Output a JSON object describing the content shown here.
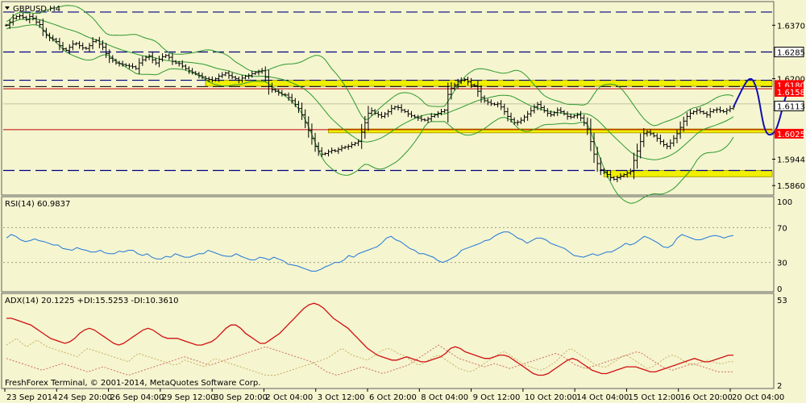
{
  "chart_data": {
    "type": "candlestick-with-indicators",
    "symbol_label": "GBPUSD,H4",
    "colors": {
      "background": "#f5f5d0",
      "candles": "#000000",
      "bollinger": "#2e9a2e",
      "rsi": "#1e78d8",
      "adx": "#d01010",
      "plus_di": "#c8b060",
      "minus_di": "#d07060",
      "support_zone": "#f0f000",
      "support_zone_border": "#b0a000",
      "red_line": "#c00000",
      "dashed_line": "#000080",
      "forecast_curve": "#1010b0",
      "price_label_bg": "#ff0000",
      "price_label_text": "#ffffff"
    },
    "price_axis": {
      "ticks": [
        "1.6370",
        "1.6285",
        "1.6200",
        "1.6180",
        "1.6158",
        "1.6113",
        "1.6025",
        "1.5944",
        "1.5860"
      ],
      "range": [
        1.5835,
        1.644
      ]
    },
    "x_axis_labels": [
      "23 Sep 2014",
      "24 Sep 20:00",
      "26 Sep 04:00",
      "29 Sep 12:00",
      "30 Sep 20:00",
      "2 Oct 04:00",
      "3 Oct 12:00",
      "6 Oct 20:00",
      "8 Oct 04:00",
      "9 Oct 12:00",
      "10 Oct 20:00",
      "14 Oct 04:00",
      "15 Oct 12:00",
      "16 Oct 20:00",
      "20 Oct 04:00"
    ],
    "highlighted_price_labels": [
      {
        "price": "1.6285",
        "style": "box"
      },
      {
        "price": "1.6180",
        "style": "red"
      },
      {
        "price": "1.6158",
        "style": "red"
      },
      {
        "price": "1.6113",
        "style": "box"
      },
      {
        "price": "1.6025",
        "style": "red"
      }
    ],
    "horizontal_levels": [
      {
        "price": 1.6412,
        "style": "dashed"
      },
      {
        "price": 1.6285,
        "style": "dashed"
      },
      {
        "price": 1.6195,
        "style": "dashed"
      },
      {
        "price": 1.6175,
        "style": "yellow-dashed"
      },
      {
        "price": 1.6168,
        "style": "red"
      },
      {
        "price": 1.612,
        "style": "solid-thin"
      },
      {
        "price": 1.6038,
        "style": "red"
      },
      {
        "price": 1.5908,
        "style": "dashed"
      }
    ],
    "support_zones": [
      {
        "from_bar": 60,
        "to_bar": 240,
        "top": 1.6195,
        "bottom": 1.6176
      },
      {
        "from_bar": 97,
        "to_bar": 240,
        "top": 1.604,
        "bottom": 1.6028
      },
      {
        "from_bar": 180,
        "to_bar": 240,
        "top": 1.5908,
        "bottom": 1.5888
      }
    ],
    "candles_close": [
      1.637,
      1.638,
      1.6392,
      1.6398,
      1.64,
      1.6395,
      1.6388,
      1.6398,
      1.6392,
      1.638,
      1.6372,
      1.6352,
      1.6338,
      1.633,
      1.6325,
      1.6318,
      1.6305,
      1.6295,
      1.629,
      1.63,
      1.631,
      1.6312,
      1.6305,
      1.6298,
      1.6296,
      1.6305,
      1.6318,
      1.6322,
      1.631,
      1.63,
      1.628,
      1.6265,
      1.6258,
      1.625,
      1.6248,
      1.6245,
      1.6242,
      1.624,
      1.6238,
      1.6232,
      1.625,
      1.626,
      1.6268,
      1.6272,
      1.626,
      1.625,
      1.6262,
      1.627,
      1.6274,
      1.6268,
      1.6255,
      1.625,
      1.6248,
      1.624,
      1.6232,
      1.6225,
      1.622,
      1.6215,
      1.621,
      1.6205,
      1.62,
      1.6198,
      1.6195,
      1.62,
      1.6208,
      1.6212,
      1.6218,
      1.621,
      1.6205,
      1.62,
      1.6195,
      1.6202,
      1.6208,
      1.621,
      1.6216,
      1.622,
      1.6222,
      1.6225,
      1.6205,
      1.6175,
      1.6165,
      1.616,
      1.6155,
      1.615,
      1.6148,
      1.614,
      1.613,
      1.6118,
      1.6105,
      1.6085,
      1.606,
      1.6035,
      1.601,
      1.5985,
      1.597,
      1.596,
      1.5962,
      1.5968,
      1.5972,
      1.597,
      1.5975,
      1.598,
      1.5983,
      1.5985,
      1.599,
      1.5995,
      1.6,
      1.603,
      1.606,
      1.609,
      1.6098,
      1.609,
      1.6085,
      1.608,
      1.6088,
      1.6095,
      1.6105,
      1.611,
      1.6108,
      1.61,
      1.6095,
      1.6088,
      1.6082,
      1.6078,
      1.6075,
      1.607,
      1.6068,
      1.6072,
      1.608,
      1.6085,
      1.609,
      1.6095,
      1.61,
      1.615,
      1.617,
      1.618,
      1.619,
      1.6195,
      1.6198,
      1.619,
      1.618,
      1.6178,
      1.616,
      1.614,
      1.613,
      1.6125,
      1.612,
      1.6118,
      1.612,
      1.611,
      1.6095,
      1.608,
      1.607,
      1.606,
      1.6062,
      1.6068,
      1.6078,
      1.6088,
      1.6098,
      1.611,
      1.6118,
      1.6108,
      1.6098,
      1.609,
      1.6085,
      1.6092,
      1.61,
      1.6095,
      1.6088,
      1.608,
      1.6078,
      1.6082,
      1.6085,
      1.6075,
      1.606,
      1.604,
      1.6,
      1.596,
      1.593,
      1.591,
      1.5902,
      1.5895,
      1.5885,
      1.588,
      1.5885,
      1.589,
      1.5895,
      1.59,
      1.5905,
      1.594,
      1.597,
      1.6,
      1.6025,
      1.603,
      1.6025,
      1.6018,
      1.601,
      1.6,
      1.599,
      1.5985,
      1.5995,
      1.601,
      1.6025,
      1.6045,
      1.6065,
      1.608,
      1.609,
      1.6095,
      1.61,
      1.6095,
      1.609,
      1.6085,
      1.6095,
      1.61,
      1.6102,
      1.6098,
      1.6095,
      1.61,
      1.6105,
      1.611
    ],
    "rsi": {
      "label": "RSI(14) 60.9837",
      "scale": [
        "100",
        "70",
        "30",
        "0"
      ],
      "range": [
        0,
        100
      ],
      "levels": [
        70,
        30
      ],
      "values": [
        58,
        62,
        60,
        56,
        54,
        55,
        57,
        55,
        54,
        52,
        50,
        50,
        46,
        45,
        44,
        47,
        45,
        44,
        42,
        42,
        44,
        41,
        40,
        40,
        43,
        42,
        44,
        44,
        40,
        38,
        40,
        36,
        34,
        34,
        37,
        36,
        40,
        38,
        36,
        36,
        38,
        40,
        40,
        44,
        42,
        40,
        38,
        37,
        37,
        40,
        37,
        35,
        33,
        33,
        36,
        35,
        33,
        36,
        34,
        32,
        28,
        27,
        26,
        24,
        22,
        20,
        20,
        22,
        25,
        27,
        30,
        30,
        33,
        38,
        36,
        40,
        42,
        44,
        46,
        48,
        52,
        58,
        60,
        56,
        54,
        50,
        46,
        44,
        40,
        40,
        38,
        36,
        32,
        30,
        32,
        35,
        38,
        44,
        46,
        48,
        50,
        52,
        55,
        56,
        60,
        63,
        65,
        65,
        62,
        58,
        56,
        52,
        55,
        58,
        58,
        56,
        52,
        50,
        48,
        46,
        42,
        38,
        37,
        36,
        38,
        40,
        38,
        40,
        42,
        42,
        45,
        48,
        52,
        50,
        52,
        56,
        60,
        58,
        55,
        52,
        48,
        47,
        50,
        58,
        62,
        60,
        58,
        56,
        56,
        58,
        60,
        61,
        60,
        58,
        60,
        61
      ]
    },
    "adx": {
      "label": "ADX(14) 20.1225 +DI:15.5253 -DI:10.3610",
      "scale": [
        "53",
        "2"
      ],
      "range": [
        2,
        53
      ],
      "adx_values": [
        42,
        42,
        41,
        40,
        39,
        38,
        36,
        34,
        32,
        30,
        29,
        28,
        27,
        28,
        30,
        33,
        35,
        36,
        35,
        33,
        31,
        29,
        27,
        26,
        27,
        29,
        31,
        33,
        35,
        36,
        35,
        33,
        31,
        30,
        30,
        30,
        29,
        28,
        27,
        26,
        26,
        27,
        28,
        30,
        33,
        36,
        38,
        38,
        36,
        33,
        31,
        29,
        27,
        27,
        29,
        31,
        33,
        36,
        39,
        42,
        45,
        48,
        50,
        51,
        50,
        48,
        45,
        42,
        40,
        38,
        36,
        33,
        30,
        27,
        24,
        22,
        20,
        19,
        18,
        17,
        17,
        18,
        19,
        18,
        17,
        16,
        16,
        17,
        18,
        19,
        21,
        24,
        25,
        24,
        22,
        21,
        20,
        19,
        18,
        18,
        19,
        20,
        20,
        19,
        17,
        15,
        13,
        11,
        9,
        8,
        8,
        9,
        11,
        13,
        15,
        17,
        18,
        17,
        15,
        13,
        11,
        10,
        9,
        9,
        10,
        11,
        12,
        13,
        13,
        13,
        12,
        11,
        10,
        10,
        11,
        12,
        13,
        14,
        15,
        16,
        17,
        18,
        17,
        16,
        16,
        17,
        18,
        19,
        20,
        20
      ],
      "plus_di_values": [
        26,
        28,
        30,
        27,
        25,
        27,
        29,
        27,
        25,
        24,
        23,
        22,
        21,
        20,
        19,
        22,
        24,
        23,
        22,
        21,
        20,
        19,
        18,
        17,
        16,
        19,
        21,
        20,
        19,
        18,
        17,
        16,
        15,
        14,
        15,
        17,
        16,
        15,
        14,
        13,
        16,
        18,
        17,
        16,
        15,
        14,
        13,
        12,
        11,
        10,
        9,
        8,
        8,
        8,
        9,
        10,
        11,
        12,
        13,
        14,
        15,
        16,
        17,
        18,
        20,
        22,
        24,
        22,
        20,
        19,
        18,
        17,
        19,
        21,
        23,
        24,
        23,
        21,
        20,
        18,
        16,
        14,
        15,
        17,
        19,
        20,
        18,
        16,
        14,
        12,
        11,
        10,
        11,
        13,
        15,
        17,
        19,
        21,
        22,
        20,
        18,
        16,
        14,
        13,
        12,
        11,
        12,
        14,
        16,
        19,
        22,
        24,
        22,
        20,
        18,
        16,
        14,
        13,
        13,
        15,
        17,
        19,
        20,
        18,
        16,
        14,
        12,
        13,
        15,
        17,
        19,
        20,
        19,
        17,
        15,
        14,
        15,
        16,
        17,
        16,
        15,
        15,
        16,
        16
      ],
      "minus_di_values": [
        18,
        17,
        16,
        15,
        14,
        13,
        12,
        11,
        12,
        13,
        14,
        15,
        14,
        13,
        12,
        11,
        10,
        11,
        12,
        13,
        12,
        11,
        10,
        9,
        8,
        9,
        10,
        11,
        12,
        13,
        14,
        15,
        16,
        17,
        18,
        19,
        18,
        17,
        16,
        15,
        14,
        15,
        16,
        17,
        18,
        19,
        20,
        21,
        22,
        23,
        24,
        25,
        24,
        23,
        22,
        21,
        20,
        19,
        18,
        17,
        16,
        14,
        12,
        10,
        9,
        8,
        9,
        10,
        11,
        12,
        13,
        12,
        11,
        10,
        9,
        10,
        11,
        12,
        13,
        14,
        16,
        18,
        20,
        22,
        24,
        26,
        24,
        22,
        20,
        18,
        17,
        16,
        15,
        14,
        13,
        14,
        15,
        14,
        13,
        12,
        13,
        14,
        15,
        16,
        17,
        18,
        19,
        20,
        21,
        20,
        18,
        16,
        14,
        13,
        12,
        13,
        14,
        15,
        16,
        17,
        18,
        19,
        20,
        21,
        22,
        21,
        19,
        17,
        15,
        13,
        12,
        11,
        12,
        13,
        14,
        15,
        14,
        13,
        12,
        11,
        10,
        10,
        10,
        10
      ]
    },
    "copyright": "FreshForex Terminal, © 2001-2014, MetaQuotes Software Corp."
  }
}
